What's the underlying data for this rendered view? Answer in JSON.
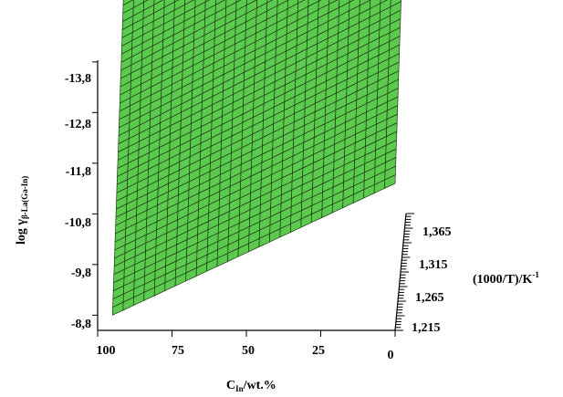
{
  "chart_data": {
    "type": "surface3d",
    "z_axis": {
      "label_main": "log γ",
      "label_sub": "β-La(Ga-In)",
      "ticks": [
        "-8,8",
        "-9,8",
        "-10,8",
        "-11,8",
        "-12,8",
        "-13,8"
      ],
      "tick_values": [
        -8.8,
        -9.8,
        -10.8,
        -11.8,
        -12.8,
        -13.8
      ]
    },
    "x_axis": {
      "label_main": "C",
      "label_sub": "In",
      "label_unit": "/wt.%",
      "ticks": [
        "100",
        "75",
        "50",
        "25",
        "0"
      ],
      "tick_values": [
        100,
        75,
        50,
        25,
        0
      ]
    },
    "y_axis": {
      "label_main": "(1000/T)/K",
      "label_sup": "-1",
      "ticks": [
        "1,215",
        "1,265",
        "1,315",
        "1,365"
      ],
      "tick_values": [
        1.215,
        1.265,
        1.315,
        1.365
      ]
    },
    "surface": {
      "c_in_range": [
        0,
        95
      ],
      "inv_t_range": [
        1.215,
        1.4
      ],
      "corners_log_gamma": [
        {
          "c_in": 95,
          "inv_t": 1.215,
          "log_gamma": -8.8
        },
        {
          "c_in": 0,
          "inv_t": 1.215,
          "log_gamma": -11.4
        },
        {
          "c_in": 95,
          "inv_t": 1.4,
          "log_gamma": -12.8
        },
        {
          "c_in": 0,
          "inv_t": 1.4,
          "log_gamma": -15.8
        }
      ],
      "grid_columns": 27,
      "grid_rows": 40,
      "fill_color": "#5cc94f",
      "edge_color": "#1b3d12"
    }
  }
}
